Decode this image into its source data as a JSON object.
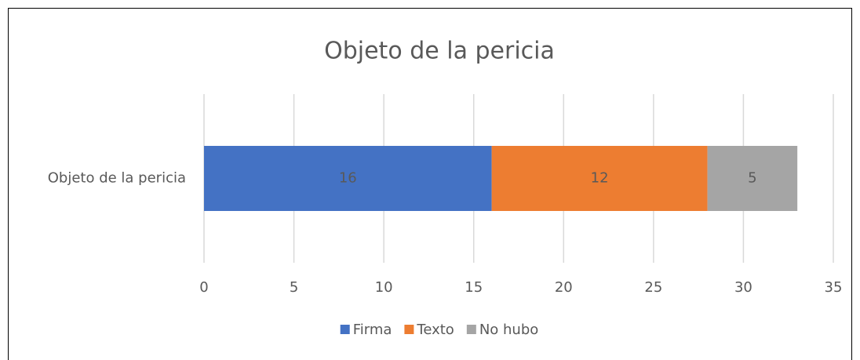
{
  "chart_data": {
    "type": "stacked-bar-horizontal",
    "title": "Objeto de la pericia",
    "categories": [
      "Objeto de la pericia"
    ],
    "series": [
      {
        "name": "Firma",
        "color": "#4472c4",
        "values": [
          16
        ]
      },
      {
        "name": "Texto",
        "color": "#ed7d31",
        "values": [
          12
        ]
      },
      {
        "name": "No hubo",
        "color": "#a5a5a5",
        "values": [
          5
        ]
      }
    ],
    "xlim": [
      0,
      35
    ],
    "xticks": [
      0,
      5,
      10,
      15,
      20,
      25,
      30,
      35
    ],
    "grid": true,
    "legend": "bottom"
  }
}
